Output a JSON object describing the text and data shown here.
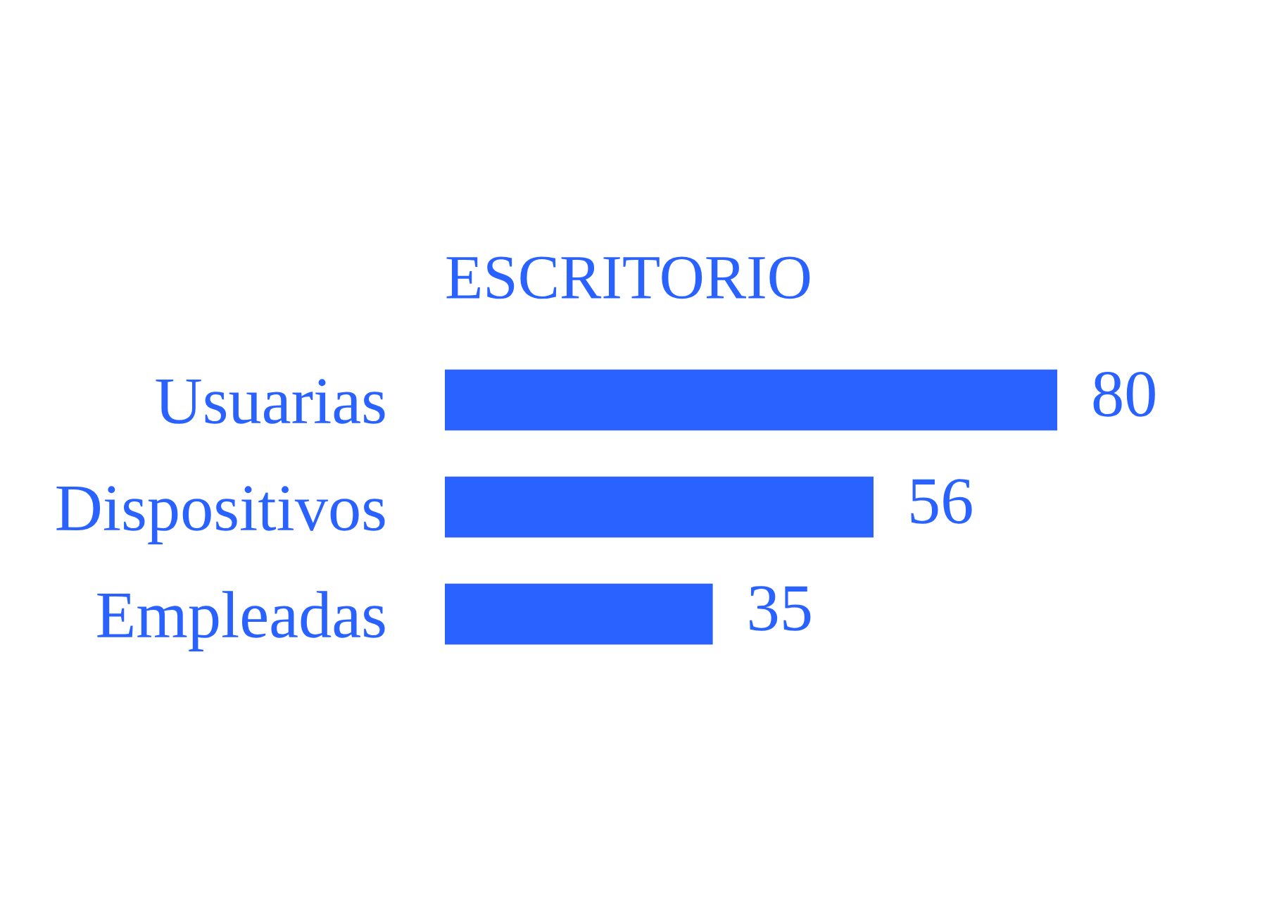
{
  "chart_data": {
    "type": "bar",
    "orientation": "horizontal",
    "title": "ESCRITORIO",
    "categories": [
      "Usuarias",
      "Dispositivos",
      "Empleadas"
    ],
    "values": [
      80,
      56,
      35
    ],
    "color": "#2962ff",
    "data_labels": true
  }
}
